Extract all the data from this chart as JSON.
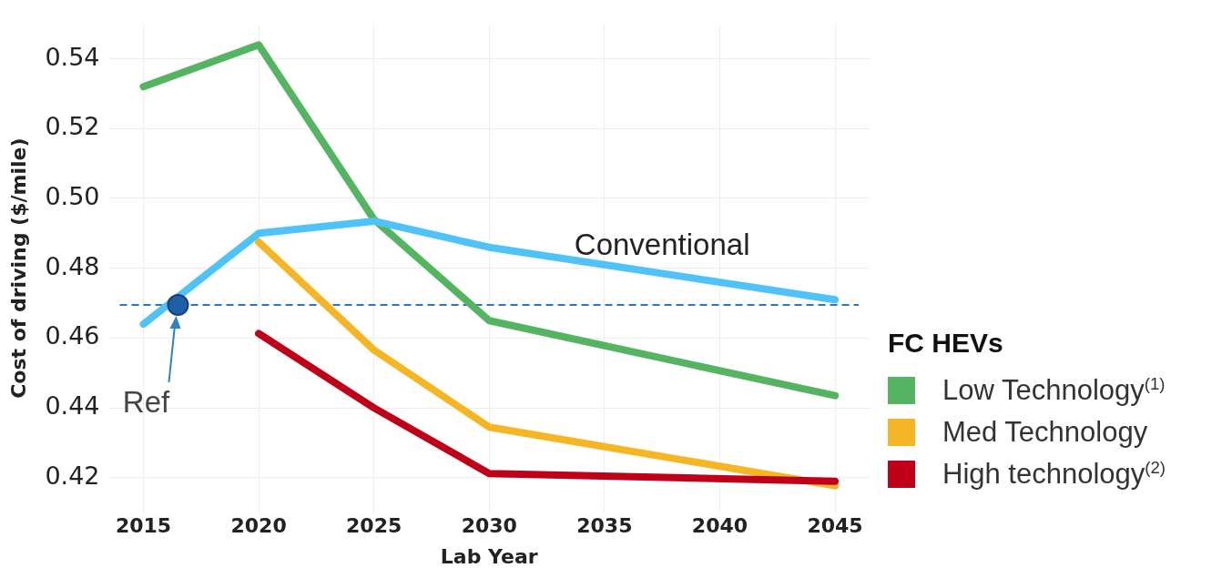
{
  "chart_data": {
    "type": "line",
    "xlabel": "Lab Year",
    "ylabel": "Cost of driving ($/mile)",
    "legend_title": "FC HEVs",
    "x": [
      2015,
      2020,
      2025,
      2030,
      2045
    ],
    "xlim": [
      2013.5,
      2046.5
    ],
    "xticks": [
      2015,
      2020,
      2025,
      2030,
      2035,
      2040,
      2045
    ],
    "ylim": [
      0.41,
      0.55
    ],
    "yticks": [
      {
        "value": 0.42,
        "label": "0.42"
      },
      {
        "value": 0.44,
        "label": "0.44"
      },
      {
        "value": 0.46,
        "label": "0.46"
      },
      {
        "value": 0.48,
        "label": "0.48"
      },
      {
        "value": 0.5,
        "label": "0.50"
      },
      {
        "value": 0.52,
        "label": "0.52"
      },
      {
        "value": 0.54,
        "label": "0.54"
      }
    ],
    "grid": true,
    "legend": "right",
    "line_style": "solid",
    "series": [
      {
        "name": "Low Technology$^{(1)}$",
        "color": "#55b461",
        "values": [
          0.532,
          0.544,
          0.494,
          0.465,
          0.4435
        ]
      },
      {
        "name": "Med Technology",
        "color": "#f5b625",
        "values": [
          null,
          0.4875,
          0.4566,
          0.4345,
          0.4177
        ]
      },
      {
        "name": "High technology$^{(2)}$",
        "color": "#c00018",
        "values": [
          null,
          0.4613,
          0.44,
          0.4212,
          0.419
        ]
      },
      {
        "name": "Conventional",
        "color": "#4fc3f7",
        "values": [
          0.464,
          0.49,
          0.4935,
          0.486,
          0.471
        ]
      },
      {
        "type": "scatter",
        "color": "#1f5fa8",
        "marker": "circle",
        "x": [
          2016.5
        ],
        "values": [
          0.4695
        ]
      }
    ],
    "ref_lines": [
      {
        "axis": "y",
        "value": 0.4695,
        "color": "#2a78b8",
        "line_style": "dashed"
      }
    ],
    "annotations": [
      {
        "text": "Ref",
        "x": 2016.5,
        "y": 0.4695
      }
    ]
  }
}
